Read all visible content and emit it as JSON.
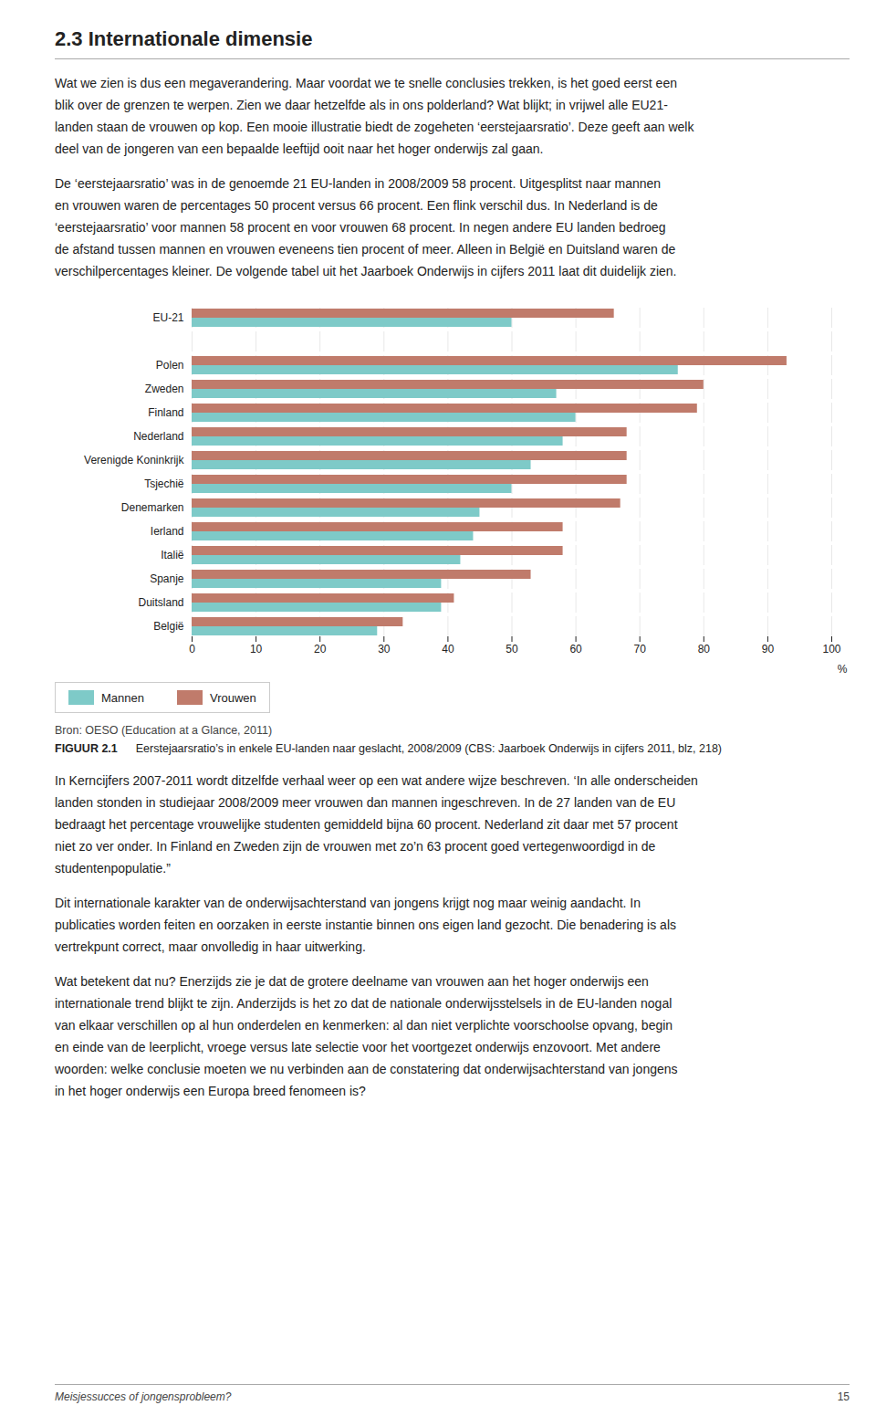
{
  "title": "2.3  Internationale dimensie",
  "paragraphs_before_chart": [
    "Wat we zien is dus een megaverandering. Maar voordat we te snelle conclusies trekken, is het goed eerst een\nblik over de grenzen te werpen. Zien we daar hetzelfde als in ons polderland? Wat blijkt; in vrijwel alle EU21-\nlanden staan de vrouwen op kop. Een mooie illustratie biedt de zogeheten ‘eerstejaarsratio’. Deze geeft aan welk\ndeel van de jongeren van een bepaalde leeftijd ooit naar het hoger onderwijs zal gaan.",
    "De ‘eerstejaarsratio’ was in de genoemde 21 EU-landen in 2008/2009 58 procent. Uitgesplitst naar mannen\nen vrouwen waren de percentages 50 procent versus 66 procent. Een flink verschil dus. In Nederland is de\n‘eerstejaarsratio’ voor mannen 58 procent en voor vrouwen 68 procent. In negen andere EU landen bedroeg\nde afstand tussen mannen en vrouwen eveneens tien procent of meer. Alleen in België en Duitsland waren de\nverschilpercentages kleiner. De volgende tabel uit het Jaarboek Onderwijs in cijfers 2011 laat dit duidelijk zien."
  ],
  "source": "Bron: OESO (Education at a Glance, 2011)",
  "figure_label": "FIGUUR 2.1",
  "figure_caption": "Eerstejaarsratio’s in enkele EU-landen naar geslacht, 2008/2009 (CBS: Jaarboek Onderwijs in cijfers 2011, blz, 218)",
  "paragraphs_after_chart": [
    "In Kerncijfers 2007-2011 wordt ditzelfde verhaal weer op een wat andere wijze beschreven. ‘In alle onderscheiden\nlanden stonden in studiejaar 2008/2009 meer vrouwen dan mannen ingeschreven. In de 27 landen van de EU\nbedraagt het percentage vrouwelijke studenten gemiddeld bijna 60 procent. Nederland zit daar met 57 procent\nniet zo ver onder. In Finland en Zweden zijn de vrouwen met zo’n 63 procent goed vertegenwoordigd in de\nstudentenpopulatie.”",
    "Dit internationale karakter van de onderwijsachterstand van jongens krijgt nog maar weinig aandacht. In\npublicaties worden feiten en oorzaken in eerste instantie binnen ons eigen land gezocht. Die benadering is als\nvertrekpunt correct, maar onvolledig in haar uitwerking.",
    "Wat betekent dat nu? Enerzijds zie je dat de grotere deelname van vrouwen aan het hoger onderwijs een\ninternationale trend blijkt te zijn. Anderzijds is het zo dat de nationale onderwijsstelsels in de EU-landen nogal\nvan elkaar verschillen op al hun onderdelen en kenmerken: al dan niet verplichte voorschoolse opvang, begin\nen einde van de leerplicht, vroege versus late selectie voor het voortgezet onderwijs enzovoort. Met andere\nwoorden: welke conclusie moeten we nu verbinden aan de constatering dat onderwijsachterstand van jongens\nin het hoger onderwijs een Europa breed fenomeen is?"
  ],
  "footer": "Meisjessucces of jongensprobleem?",
  "page_number": "15",
  "chart_data": {
    "type": "bar",
    "orientation": "horizontal",
    "categories": [
      "EU-21",
      null,
      "Polen",
      "Zweden",
      "Finland",
      "Nederland",
      "Verenigde Koninkrijk",
      "Tsjechië",
      "Denemarken",
      "Ierland",
      "Italië",
      "Spanje",
      "Duitsland",
      "België"
    ],
    "series": [
      {
        "name": "Mannen",
        "color": "#7ecac8",
        "values": [
          50,
          null,
          76,
          57,
          60,
          58,
          53,
          50,
          45,
          44,
          42,
          39,
          39,
          29
        ]
      },
      {
        "name": "Vrouwen",
        "color": "#c07b6b",
        "values": [
          66,
          null,
          93,
          80,
          79,
          68,
          68,
          68,
          67,
          58,
          58,
          53,
          41,
          33
        ]
      }
    ],
    "xlim": [
      0,
      100
    ],
    "xticks": [
      0,
      10,
      20,
      30,
      40,
      50,
      60,
      70,
      80,
      90,
      100
    ],
    "xlabel": "%",
    "grid": true,
    "legend": "lower left"
  }
}
